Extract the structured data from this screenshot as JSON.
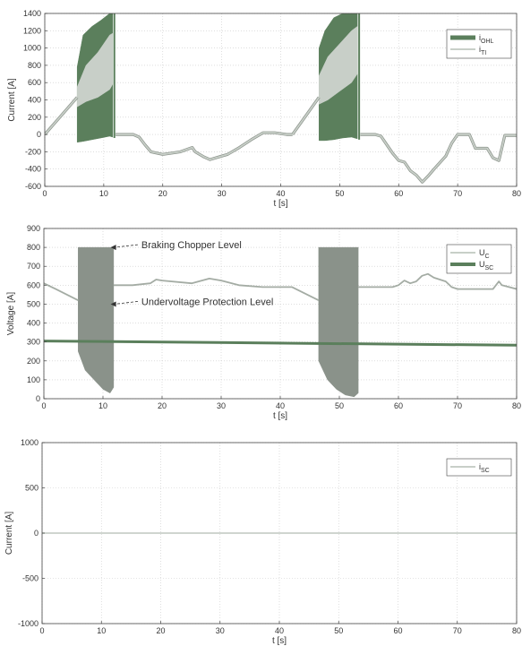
{
  "palette": {
    "dark_green": "#5b7f5c",
    "light_gray": "#c8cfc8",
    "mid_gray": "#8a928a",
    "axis": "#444444",
    "grid": "#c9c9c9"
  },
  "chart_data": [
    {
      "type": "line",
      "xlabel": "t [s]",
      "ylabel": "Current [A]",
      "xlim": [
        0,
        80
      ],
      "ylim": [
        -600,
        1400
      ],
      "xticks": [
        0,
        10,
        20,
        30,
        40,
        50,
        60,
        70,
        80
      ],
      "xtick_labels": [
        "0",
        "10",
        "20",
        "30",
        "40",
        "50",
        "60",
        "70",
        "80"
      ],
      "yticks": [
        -600,
        -400,
        -200,
        0,
        200,
        400,
        600,
        800,
        1000,
        1200,
        1400
      ],
      "ytick_labels": [
        "-600",
        "-400",
        "-200",
        "0",
        "200",
        "400",
        "600",
        "800",
        "1000",
        "1200",
        "1400"
      ],
      "grid": true,
      "legend_position": "top-right",
      "legend": [
        {
          "label": "i",
          "sub": "OHL",
          "color": "#5b7f5c",
          "width": 5
        },
        {
          "label": "i",
          "sub": "TI",
          "color": "#c8cfc8",
          "width": 2
        }
      ],
      "series": [
        {
          "name": "i_OHL",
          "kind": "band",
          "color": "#5b7f5c",
          "segments": [
            {
              "x": [
                5.5,
                6.5,
                8,
                9.5,
                11,
                11.5
              ],
              "upper": [
                780,
                1150,
                1250,
                1320,
                1400,
                1400
              ],
              "lower": [
                -90,
                -80,
                -60,
                -40,
                -20,
                -30
              ]
            },
            {
              "x": [
                46.5,
                47.5,
                49,
                50.5,
                52,
                53
              ],
              "upper": [
                1000,
                1200,
                1350,
                1400,
                1400,
                1400
              ],
              "lower": [
                -70,
                -70,
                -60,
                -40,
                -30,
                -50
              ]
            }
          ],
          "edges": [
            [
              11.8,
              1400,
              -40
            ],
            [
              53.3,
              1400,
              -60
            ]
          ]
        },
        {
          "name": "i_TI_band",
          "kind": "band",
          "color": "#c8cfc8",
          "segments": [
            {
              "x": [
                5.5,
                7,
                9,
                11,
                11.5
              ],
              "upper": [
                550,
                800,
                950,
                1150,
                1170
              ],
              "lower": [
                320,
                380,
                430,
                520,
                580
              ]
            },
            {
              "x": [
                46.5,
                48,
                50,
                52,
                53
              ],
              "upper": [
                680,
                900,
                1050,
                1200,
                1250
              ],
              "lower": [
                350,
                400,
                500,
                600,
                700
              ]
            }
          ]
        },
        {
          "name": "i_TI",
          "kind": "line",
          "color": "#c8cfc8",
          "outline": "#8a928a",
          "segments": [
            {
              "x": [
                0,
                5.5
              ],
              "y": [
                0,
                430
              ]
            },
            {
              "x": [
                12,
                15,
                16,
                17,
                18,
                20,
                23,
                25,
                25.5,
                27,
                28,
                30,
                31,
                33,
                35,
                37,
                39,
                41,
                42
              ],
              "y": [
                0,
                0,
                -30,
                -120,
                -200,
                -230,
                -200,
                -150,
                -200,
                -260,
                -290,
                -250,
                -230,
                -150,
                -60,
                20,
                20,
                0,
                0
              ]
            },
            {
              "x": [
                42,
                46.5
              ],
              "y": [
                0,
                430
              ]
            },
            {
              "x": [
                53.5,
                56,
                57,
                58,
                59,
                60,
                61,
                62,
                63,
                64,
                65,
                66,
                68,
                69,
                70,
                71,
                72,
                73,
                75,
                76,
                77,
                78,
                80
              ],
              "y": [
                0,
                0,
                -20,
                -120,
                -220,
                -300,
                -320,
                -420,
                -470,
                -550,
                -480,
                -400,
                -250,
                -100,
                0,
                0,
                0,
                -160,
                -160,
                -270,
                -300,
                -10,
                -10
              ]
            }
          ]
        }
      ],
      "annotations": []
    },
    {
      "type": "line",
      "xlabel": "t [s]",
      "ylabel": "Voltage [A]",
      "xlim": [
        0,
        80
      ],
      "ylim": [
        0,
        900
      ],
      "xticks": [
        0,
        10,
        20,
        30,
        40,
        50,
        60,
        70,
        80
      ],
      "xtick_labels": [
        "0",
        "10",
        "20",
        "30",
        "40",
        "50",
        "60",
        "70",
        "80"
      ],
      "yticks": [
        0,
        100,
        200,
        300,
        400,
        500,
        600,
        700,
        800,
        900
      ],
      "ytick_labels": [
        "0",
        "100",
        "200",
        "300",
        "400",
        "500",
        "600",
        "700",
        "800",
        "900"
      ],
      "grid": true,
      "legend_position": "top-right",
      "legend": [
        {
          "label": "U",
          "sub": "C",
          "color": "#c8cfc8",
          "width": 2
        },
        {
          "label": "U",
          "sub": "SC",
          "color": "#5b7f5c",
          "width": 4
        }
      ],
      "series": [
        {
          "name": "U_C_band",
          "kind": "band",
          "color": "#8a928a",
          "segments": [
            {
              "x": [
                5.8,
                7,
                8.5,
                10,
                11.2,
                11.8
              ],
              "upper": [
                800,
                800,
                800,
                800,
                800,
                800
              ],
              "lower": [
                250,
                150,
                100,
                50,
                30,
                60
              ]
            },
            {
              "x": [
                46.5,
                48,
                49.5,
                51,
                52.5,
                53.2
              ],
              "upper": [
                800,
                800,
                800,
                800,
                800,
                800
              ],
              "lower": [
                200,
                100,
                50,
                20,
                10,
                30
              ]
            }
          ]
        },
        {
          "name": "U_C",
          "kind": "line",
          "color": "#a4aca4",
          "segments": [
            {
              "x": [
                0,
                2,
                5.8
              ],
              "y": [
                610,
                580,
                520
              ]
            },
            {
              "x": [
                11.8,
                15,
                18,
                19,
                20,
                25,
                28,
                30,
                33,
                37,
                42,
                46.5
              ],
              "y": [
                600,
                600,
                610,
                630,
                625,
                610,
                635,
                625,
                600,
                590,
                590,
                520
              ]
            },
            {
              "x": [
                53.2,
                59,
                60,
                61,
                62,
                63,
                64,
                65,
                66,
                68,
                69,
                70,
                76,
                77,
                77.5,
                80
              ],
              "y": [
                590,
                590,
                600,
                625,
                610,
                620,
                650,
                660,
                640,
                620,
                590,
                580,
                580,
                620,
                600,
                580
              ]
            }
          ]
        },
        {
          "name": "U_SC",
          "kind": "line",
          "color": "#5b7f5c",
          "width": 3,
          "segments": [
            {
              "x": [
                0,
                80
              ],
              "y": [
                305,
                283
              ]
            }
          ]
        }
      ],
      "annotations": [
        {
          "text": "Braking Chopper Level",
          "x": 11,
          "y": 800,
          "label_x": 16.5,
          "label_y": 800
        },
        {
          "text": "Undervoltage Protection Level",
          "x": 11,
          "y": 500,
          "label_x": 16.5,
          "label_y": 500
        }
      ]
    },
    {
      "type": "line",
      "xlabel": "t [s]",
      "ylabel": "Current [A]",
      "xlim": [
        0,
        80
      ],
      "ylim": [
        -1000,
        1000
      ],
      "xticks": [
        0,
        10,
        20,
        30,
        40,
        50,
        60,
        70,
        80
      ],
      "xtick_labels": [
        "0",
        "10",
        "20",
        "30",
        "40",
        "50",
        "60",
        "70",
        "80"
      ],
      "yticks": [
        -1000,
        -500,
        0,
        500,
        1000
      ],
      "ytick_labels": [
        "-1000",
        "-500",
        "0",
        "500",
        "1000"
      ],
      "grid": true,
      "legend_position": "top-right",
      "legend": [
        {
          "label": "i",
          "sub": "SC",
          "color": "#c8cfc8",
          "width": 2
        }
      ],
      "series": [
        {
          "name": "i_SC",
          "kind": "line",
          "color": "#c8cfc8",
          "segments": [
            {
              "x": [
                0,
                80
              ],
              "y": [
                0,
                0
              ]
            }
          ]
        }
      ],
      "annotations": []
    }
  ]
}
